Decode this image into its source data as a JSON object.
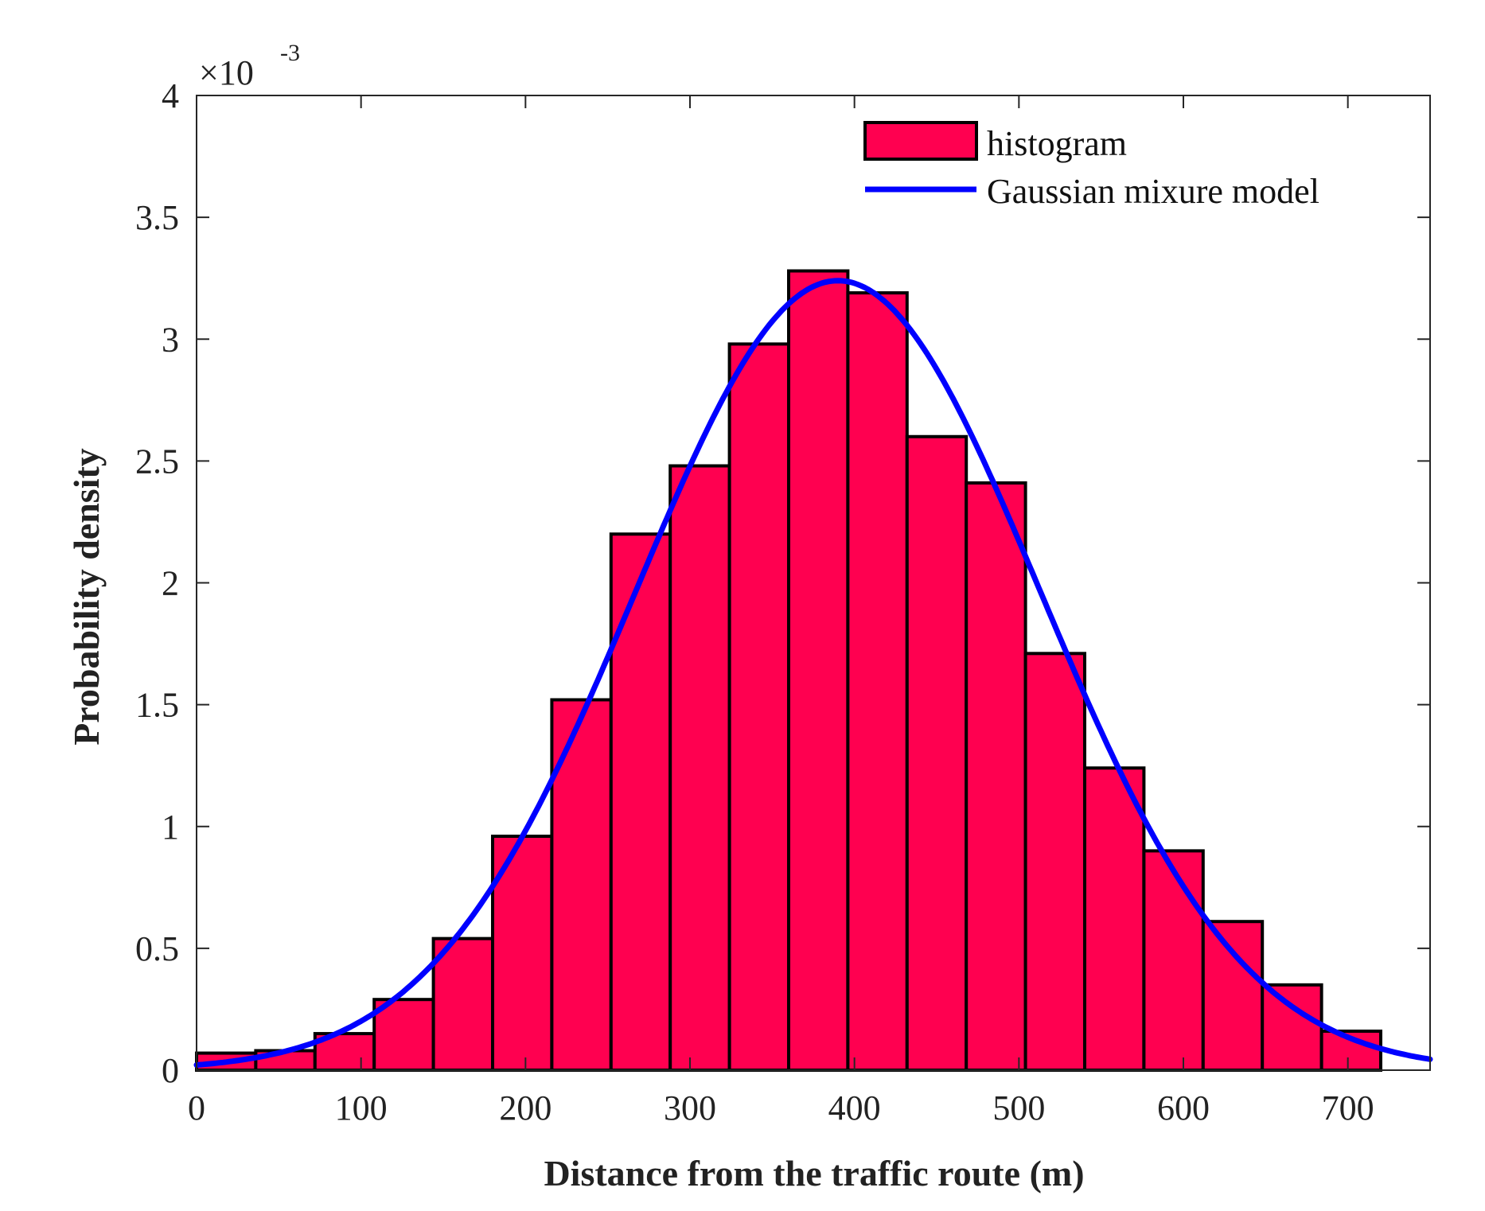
{
  "chart_data": {
    "type": "bar",
    "title": "",
    "xlabel": "Distance from the traffic route (m)",
    "ylabel": "Probability density",
    "xlim": [
      0,
      750
    ],
    "ylim": [
      0,
      4
    ],
    "y_scale_exponent": {
      "base": "×10",
      "power": "-3"
    },
    "xticks": [
      0,
      100,
      200,
      300,
      400,
      500,
      600,
      700
    ],
    "xtick_labels": [
      "0",
      "100",
      "200",
      "300",
      "400",
      "500",
      "600",
      "700"
    ],
    "yticks": [
      0,
      0.5,
      1,
      1.5,
      2,
      2.5,
      3,
      3.5,
      4
    ],
    "ytick_labels": [
      "0",
      "0.5",
      "1",
      "1.5",
      "2",
      "2.5",
      "3",
      "3.5",
      "4"
    ],
    "grid": false,
    "legend_position": "top-right",
    "series": [
      {
        "name": "histogram",
        "kind": "histogram",
        "bin_width": 36,
        "bin_edges": [
          0,
          36,
          72,
          108,
          144,
          180,
          216,
          252,
          288,
          324,
          360,
          396,
          432,
          468,
          504,
          540,
          576,
          612,
          648,
          684,
          720
        ],
        "values": [
          0.07,
          0.08,
          0.15,
          0.29,
          0.54,
          0.96,
          1.52,
          2.2,
          2.48,
          2.98,
          3.28,
          3.19,
          2.6,
          2.41,
          1.71,
          1.24,
          0.9,
          0.61,
          0.35,
          0.16
        ],
        "color": "#ff0050",
        "edge_color": "#000000"
      },
      {
        "name": "Gaussian mixure model",
        "kind": "line",
        "color": "#0000ff",
        "mean": 390,
        "sigma": 123,
        "peak": 3.24,
        "x_range": [
          0,
          750
        ]
      }
    ]
  }
}
